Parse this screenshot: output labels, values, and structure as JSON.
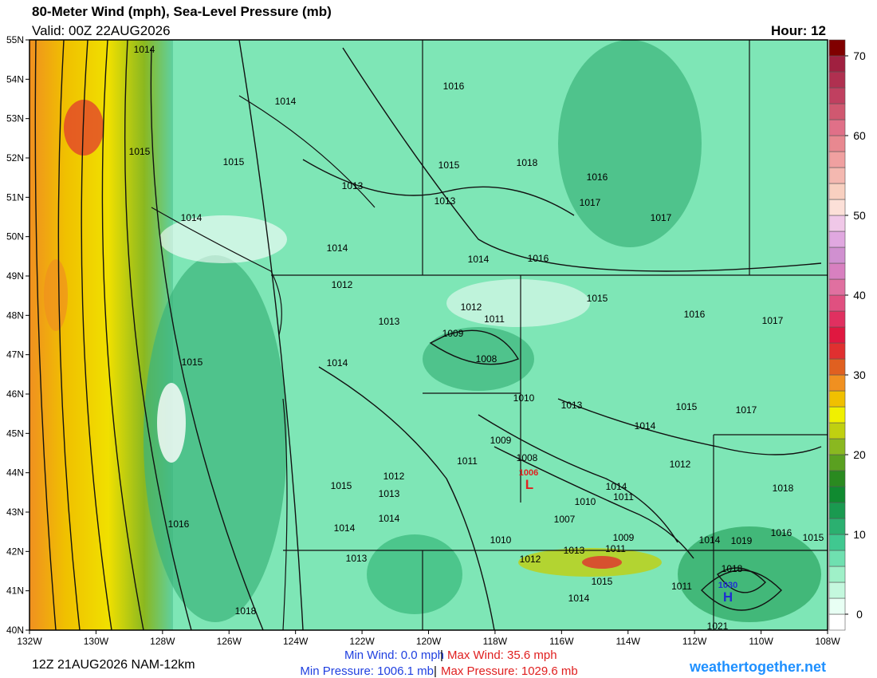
{
  "header": {
    "title": "80-Meter Wind (mph), Sea-Level Pressure (mb)",
    "valid": "Valid: 00Z 22AUG2026",
    "hour": "Hour: 12"
  },
  "map": {
    "lat_labels": [
      "55N",
      "54N",
      "53N",
      "52N",
      "51N",
      "50N",
      "49N",
      "48N",
      "47N",
      "46N",
      "45N",
      "44N",
      "43N",
      "42N",
      "41N",
      "40N"
    ],
    "lon_labels": [
      "132W",
      "130W",
      "128W",
      "126W",
      "124W",
      "122W",
      "120W",
      "118W",
      "116W",
      "114W",
      "112W",
      "110W",
      "108W"
    ],
    "isobar_labels": [
      "1014",
      "1016",
      "1014",
      "1015",
      "1015",
      "1015",
      "1018",
      "1016",
      "1013",
      "1013",
      "1017",
      "1014",
      "1017",
      "1014",
      "1014",
      "1016",
      "1012",
      "1015",
      "1012",
      "1011",
      "1016",
      "1017",
      "1013",
      "1009",
      "1008",
      "1015",
      "1014",
      "1010",
      "1013",
      "1015",
      "1017",
      "1014",
      "1009",
      "1011",
      "1008",
      "1012",
      "1015",
      "1012",
      "1013",
      "1014",
      "1011",
      "1018",
      "1010",
      "1014",
      "1014",
      "1016",
      "1007",
      "1016",
      "1015",
      "1009",
      "1010",
      "1014",
      "1019",
      "1013",
      "1011",
      "1012",
      "1013",
      "1018",
      "1015",
      "1014",
      "1011",
      "1018",
      "1021"
    ],
    "low": {
      "symbol": "L",
      "value": "1006"
    },
    "high": {
      "symbol": "H",
      "value": "1030"
    }
  },
  "colorbar": {
    "lim": [
      -2,
      72
    ],
    "ticks": [
      0,
      10,
      20,
      30,
      40,
      50,
      60,
      70
    ],
    "colors": [
      "#ffffff",
      "#e8fff4",
      "#c4f8de",
      "#9ff0c8",
      "#6fe0b0",
      "#40c890",
      "#2bb070",
      "#1a9a50",
      "#108a30",
      "#2a8a20",
      "#5aa020",
      "#8ab820",
      "#c0d010",
      "#f0f000",
      "#f0c000",
      "#f09020",
      "#e06020",
      "#e03030",
      "#e01840",
      "#e03060",
      "#e05080",
      "#e070a0",
      "#d880c0",
      "#d090d0",
      "#e0a8e0",
      "#f0c8e8",
      "#fce0d8",
      "#f8d0c0",
      "#f4b8b0",
      "#f0a0a0",
      "#e88890",
      "#e07088",
      "#d05870",
      "#c04060",
      "#b03050",
      "#a02040",
      "#800000"
    ]
  },
  "footer": {
    "run": "12Z 21AUG2026 NAM-12km",
    "min_wind": "Min Wind:  0.0 mph",
    "separator": "|",
    "max_wind": "Max Wind:  35.6 mph",
    "min_pressure": "Min Pressure: 1006.1 mb",
    "max_pressure": "Max Pressure: 1029.6 mb",
    "site": "weathertogether.net"
  }
}
